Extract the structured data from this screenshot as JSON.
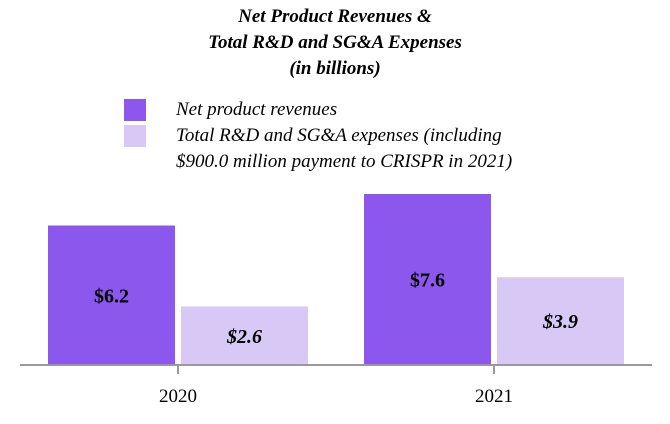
{
  "chart_data": {
    "type": "bar",
    "title_lines": [
      "Net Product Revenues &",
      "Total R&D and SG&A Expenses",
      "(in billions)"
    ],
    "categories": [
      "2020",
      "2021"
    ],
    "series": [
      {
        "name": "Net product revenues",
        "values": [
          6.2,
          7.6
        ],
        "labels": [
          "$6.2",
          "$7.6"
        ],
        "color": "#8c57ec"
      },
      {
        "name_lines": [
          "Total R&D and SG&A expenses (including",
          "$900.0 million payment to CRISPR in 2021)"
        ],
        "values": [
          2.6,
          3.9
        ],
        "labels": [
          "$2.6",
          "$3.9"
        ],
        "color": "#d8c8f6"
      }
    ],
    "xlabel": "",
    "ylabel": "",
    "ylim": [
      0,
      7.6
    ],
    "grid": false,
    "legend_position": "top",
    "axis_color": "#999999"
  }
}
